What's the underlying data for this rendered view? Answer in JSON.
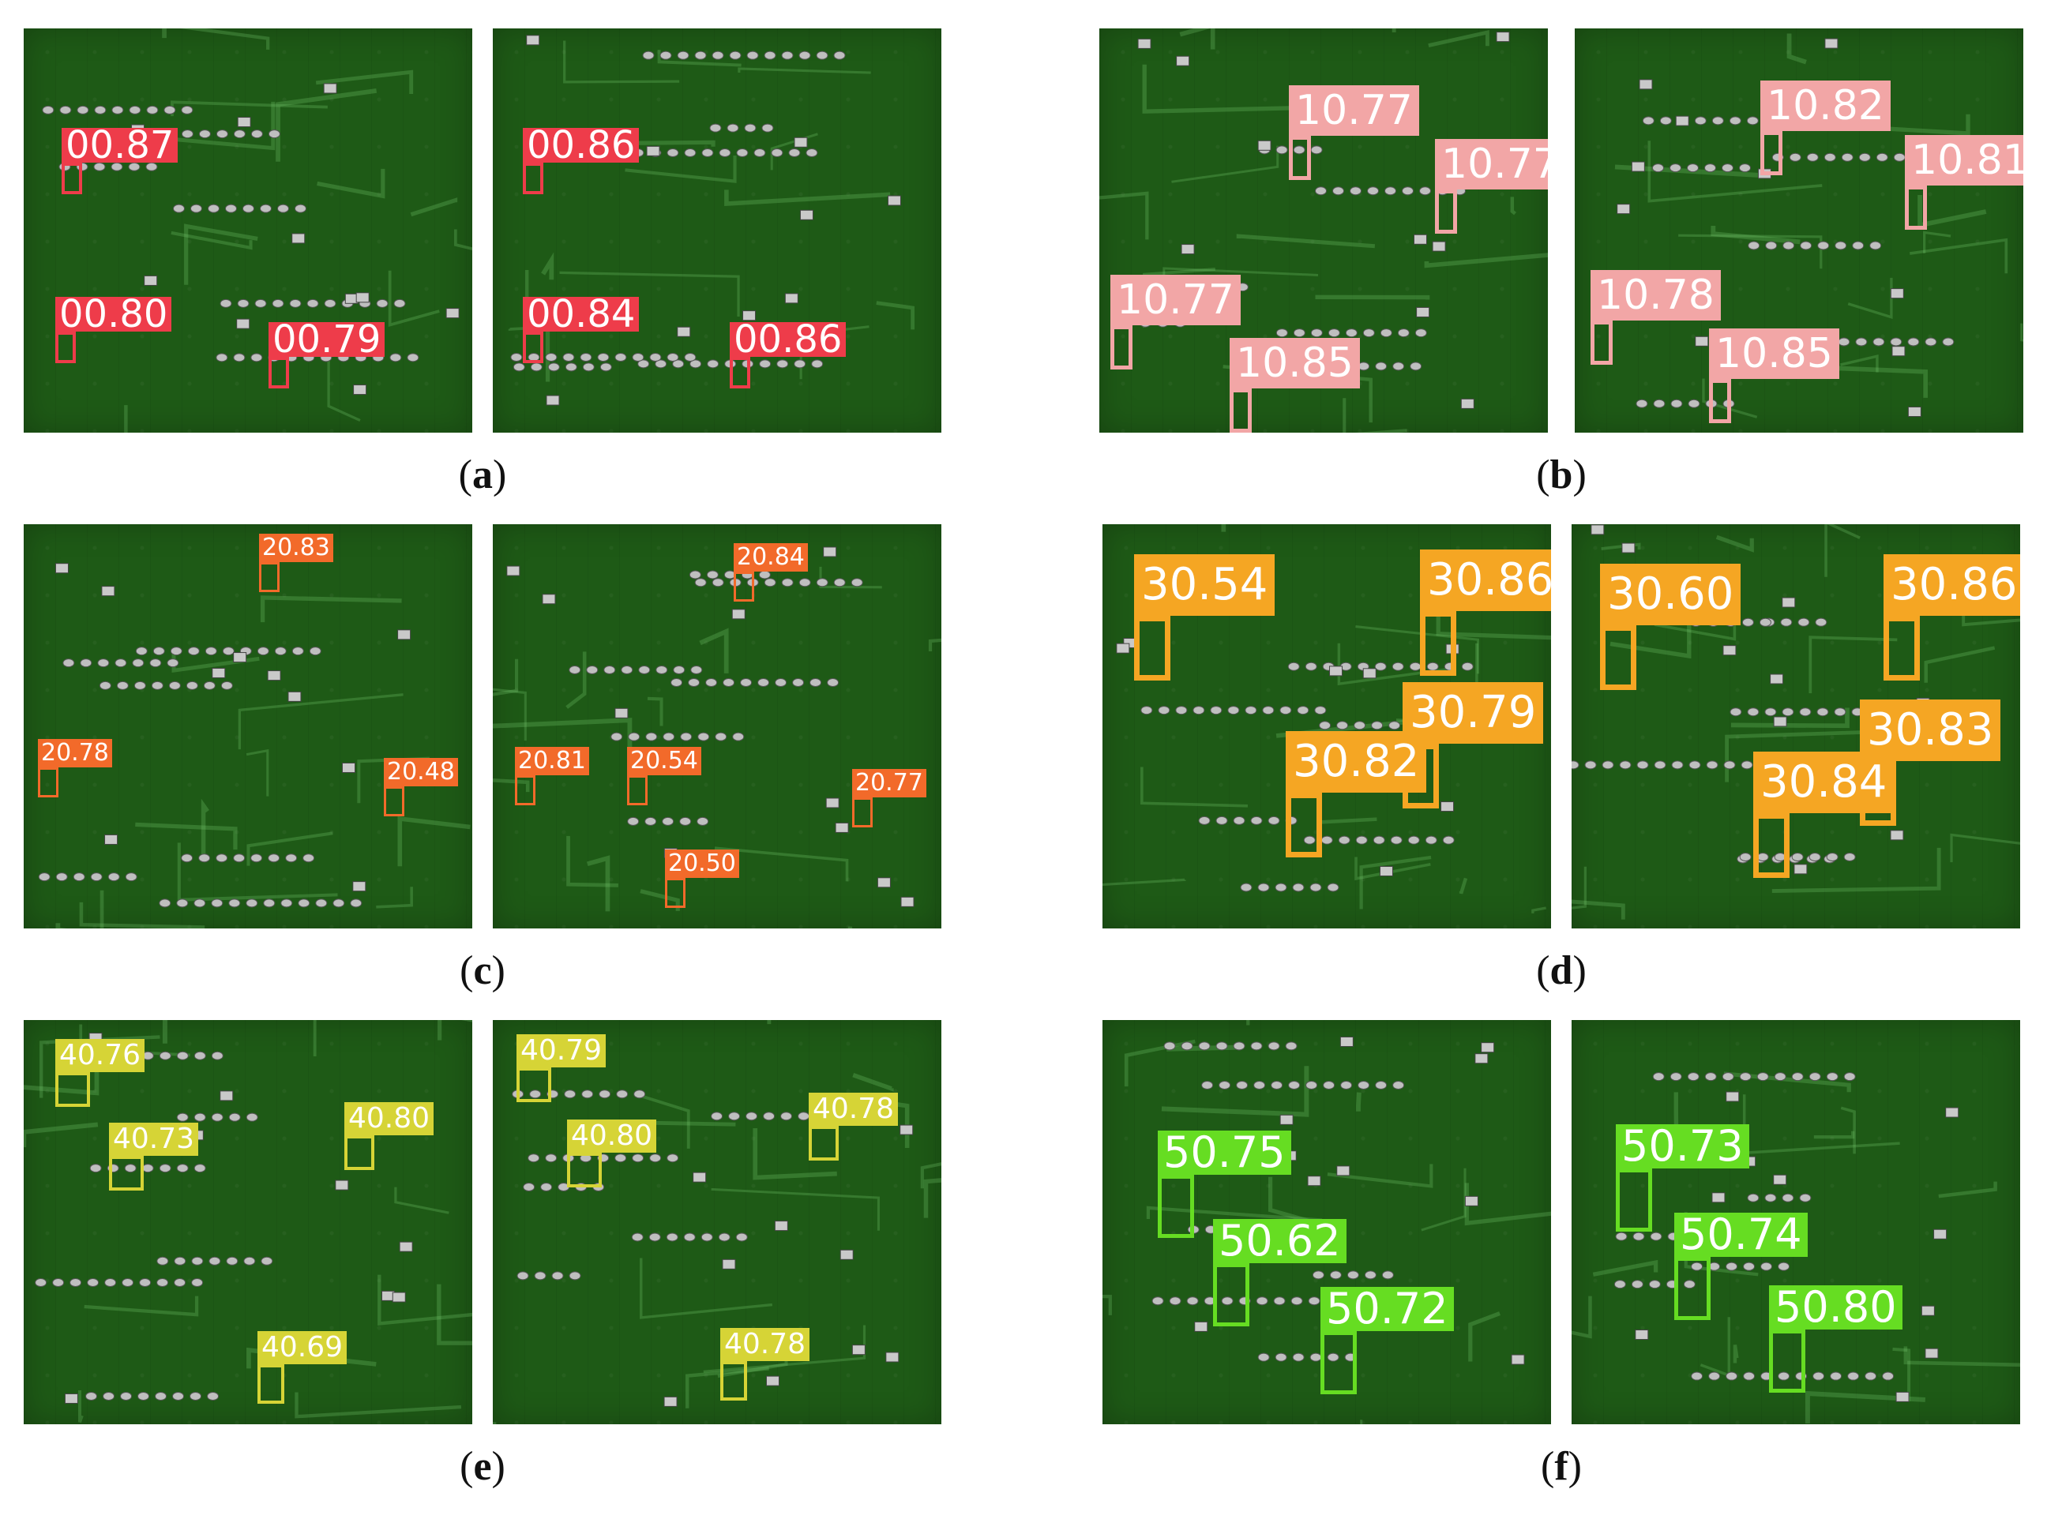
{
  "figure": {
    "panels": [
      {
        "caption_letter": "a",
        "color": "#ee3c4a",
        "left_image": {
          "detections": [
            {
              "class": "0",
              "score": "0.87"
            },
            {
              "class": "0",
              "score": "0.80"
            },
            {
              "class": "0",
              "score": "0.79"
            }
          ]
        },
        "right_image": {
          "detections": [
            {
              "class": "0",
              "score": "0.86"
            },
            {
              "class": "0",
              "score": "0.84"
            },
            {
              "class": "0",
              "score": "0.86"
            }
          ]
        }
      },
      {
        "caption_letter": "b",
        "color": "#f2a6a6",
        "left_image": {
          "detections": [
            {
              "class": "1",
              "score": "0.77"
            },
            {
              "class": "1",
              "score": "0.77"
            },
            {
              "class": "1",
              "score": "0.77"
            },
            {
              "class": "1",
              "score": "0.85"
            }
          ]
        },
        "right_image": {
          "detections": [
            {
              "class": "1",
              "score": "0.82"
            },
            {
              "class": "1",
              "score": "0.81"
            },
            {
              "class": "1",
              "score": "0.78"
            },
            {
              "class": "1",
              "score": "0.85"
            }
          ]
        }
      },
      {
        "caption_letter": "c",
        "color": "#f26a2a",
        "left_image": {
          "detections": [
            {
              "class": "2",
              "score": "0.83"
            },
            {
              "class": "2",
              "score": "0.78"
            },
            {
              "class": "2",
              "score": "0.48"
            }
          ]
        },
        "right_image": {
          "detections": [
            {
              "class": "2",
              "score": "0.84"
            },
            {
              "class": "2",
              "score": "0.81"
            },
            {
              "class": "2",
              "score": "0.54"
            },
            {
              "class": "2",
              "score": "0.77"
            },
            {
              "class": "2",
              "score": "0.50"
            }
          ]
        }
      },
      {
        "caption_letter": "d",
        "color": "#f5a623",
        "left_image": {
          "detections": [
            {
              "class": "3",
              "score": "0.54"
            },
            {
              "class": "3",
              "score": "0.86"
            },
            {
              "class": "3",
              "score": "0.79"
            },
            {
              "class": "3",
              "score": "0.82"
            }
          ]
        },
        "right_image": {
          "detections": [
            {
              "class": "3",
              "score": "0.60"
            },
            {
              "class": "3",
              "score": "0.86"
            },
            {
              "class": "3",
              "score": "0.83"
            },
            {
              "class": "3",
              "score": "0.84"
            }
          ]
        }
      },
      {
        "caption_letter": "e",
        "color": "#d6d436",
        "left_image": {
          "detections": [
            {
              "class": "4",
              "score": "0.76"
            },
            {
              "class": "4",
              "score": "0.73"
            },
            {
              "class": "4",
              "score": "0.80"
            },
            {
              "class": "4",
              "score": "0.69"
            }
          ]
        },
        "right_image": {
          "detections": [
            {
              "class": "4",
              "score": "0.79"
            },
            {
              "class": "4",
              "score": "0.80"
            },
            {
              "class": "4",
              "score": "0.78"
            },
            {
              "class": "4",
              "score": "0.78"
            }
          ]
        }
      },
      {
        "caption_letter": "f",
        "color": "#66dd22",
        "left_image": {
          "detections": [
            {
              "class": "5",
              "score": "0.75"
            },
            {
              "class": "5",
              "score": "0.62"
            },
            {
              "class": "5",
              "score": "0.72"
            }
          ]
        },
        "right_image": {
          "detections": [
            {
              "class": "5",
              "score": "0.73"
            },
            {
              "class": "5",
              "score": "0.74"
            },
            {
              "class": "5",
              "score": "0.80"
            }
          ]
        }
      }
    ]
  }
}
